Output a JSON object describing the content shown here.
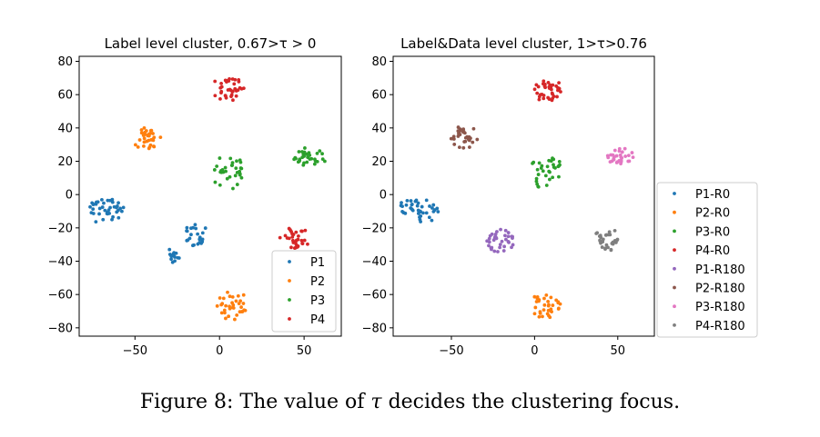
{
  "caption": {
    "prefix": "Figure 8: The value of ",
    "symbol": "τ",
    "suffix": " decides the clustering focus."
  },
  "chart_data": [
    {
      "type": "scatter",
      "title": "Label level cluster, 0.67>τ > 0",
      "xlabel": "",
      "ylabel": "",
      "xlim": [
        -83,
        72
      ],
      "ylim": [
        -85,
        83
      ],
      "xticks": [
        -50,
        0,
        50
      ],
      "xtick_labels": [
        "−50",
        "0",
        "50"
      ],
      "yticks": [
        80,
        60,
        40,
        20,
        0,
        -20,
        -40,
        -60,
        -80
      ],
      "ytick_labels": [
        "80",
        "60",
        "40",
        "20",
        "0",
        "−20",
        "−40",
        "−60",
        "−80"
      ],
      "grid": false,
      "legend_position": "lower-right",
      "series": [
        {
          "name": "P1",
          "color": "#1f77b4",
          "clusters": [
            {
              "cx": -68,
              "cy": -9,
              "sx": 9,
              "sy": 5,
              "n": 40
            },
            {
              "cx": -14,
              "cy": -25,
              "sx": 5,
              "sy": 5,
              "n": 24
            },
            {
              "cx": -28,
              "cy": -37,
              "sx": 3,
              "sy": 3,
              "n": 14
            }
          ]
        },
        {
          "name": "P2",
          "color": "#ff7f0e",
          "clusters": [
            {
              "cx": -42,
              "cy": 33,
              "sx": 6,
              "sy": 5,
              "n": 32
            },
            {
              "cx": 6,
              "cy": -67,
              "sx": 7,
              "sy": 6,
              "n": 34
            }
          ]
        },
        {
          "name": "P3",
          "color": "#2ca02c",
          "clusters": [
            {
              "cx": 6,
              "cy": 13,
              "sx": 7,
              "sy": 7,
              "n": 32
            },
            {
              "cx": 52,
              "cy": 23,
              "sx": 7,
              "sy": 4,
              "n": 34
            }
          ]
        },
        {
          "name": "P4",
          "color": "#d62728",
          "clusters": [
            {
              "cx": 6,
              "cy": 63,
              "sx": 6,
              "sy": 6,
              "n": 36
            },
            {
              "cx": 44,
              "cy": -27,
              "sx": 6,
              "sy": 5,
              "n": 32
            }
          ]
        }
      ]
    },
    {
      "type": "scatter",
      "title": "Label&Data level cluster, 1>τ>0.76",
      "xlabel": "",
      "ylabel": "",
      "xlim": [
        -85,
        72
      ],
      "ylim": [
        -85,
        83
      ],
      "xticks": [
        -50,
        0,
        50
      ],
      "xtick_labels": [
        "−50",
        "0",
        "50"
      ],
      "yticks": [
        80,
        60,
        40,
        20,
        0,
        -20,
        -40,
        -60,
        -80
      ],
      "ytick_labels": [
        "80",
        "60",
        "40",
        "20",
        "0",
        "−20",
        "−40",
        "−60",
        "−80"
      ],
      "grid": false,
      "legend_position": "outside-right",
      "series": [
        {
          "name": "P1-R0",
          "color": "#1f77b4",
          "clusters": [
            {
              "cx": -68,
              "cy": -9,
              "sx": 9,
              "sy": 5,
              "n": 40
            }
          ]
        },
        {
          "name": "P2-R0",
          "color": "#ff7f0e",
          "clusters": [
            {
              "cx": 7,
              "cy": -67,
              "sx": 7,
              "sy": 6,
              "n": 34
            }
          ]
        },
        {
          "name": "P3-R0",
          "color": "#2ca02c",
          "clusters": [
            {
              "cx": 7,
              "cy": 13,
              "sx": 7,
              "sy": 7,
              "n": 32
            }
          ]
        },
        {
          "name": "P4-R0",
          "color": "#d62728",
          "clusters": [
            {
              "cx": 8,
              "cy": 63,
              "sx": 6,
              "sy": 6,
              "n": 36
            }
          ]
        },
        {
          "name": "P1-R180",
          "color": "#9467bd",
          "clusters": [
            {
              "cx": -20,
              "cy": -28,
              "sx": 7,
              "sy": 6,
              "n": 36
            }
          ]
        },
        {
          "name": "P2-R180",
          "color": "#8c564b",
          "clusters": [
            {
              "cx": -42,
              "cy": 34,
              "sx": 6,
              "sy": 5,
              "n": 32
            }
          ]
        },
        {
          "name": "P3-R180",
          "color": "#e377c2",
          "clusters": [
            {
              "cx": 52,
              "cy": 23,
              "sx": 6,
              "sy": 4,
              "n": 32
            }
          ]
        },
        {
          "name": "P4-R180",
          "color": "#7f7f7f",
          "clusters": [
            {
              "cx": 44,
              "cy": -27,
              "sx": 6,
              "sy": 5,
              "n": 32
            }
          ]
        }
      ]
    }
  ]
}
